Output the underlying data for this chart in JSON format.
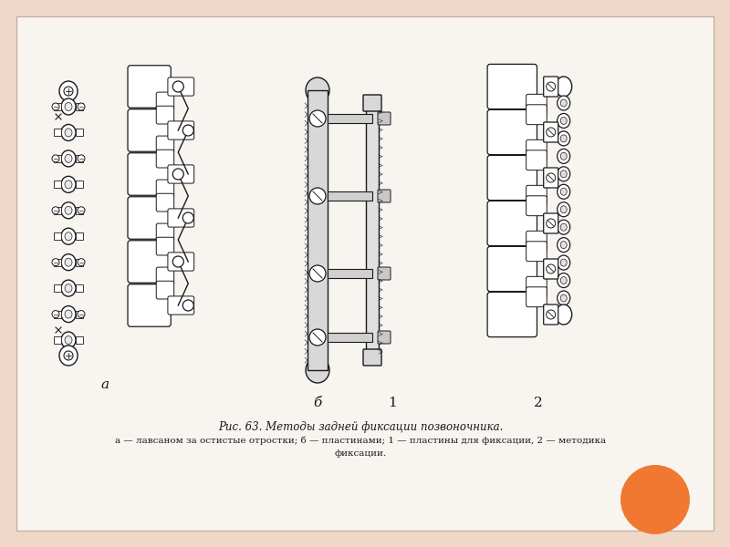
{
  "title_line1": "Рис. 63. Методы задней фиксации позвоночника.",
  "title_line2": "а — лавсаном за остистые отростки; б — пластинами; 1 — пластины для фиксации, 2 — методика",
  "title_line3": "фиксации.",
  "label_a": "а",
  "label_b": "б",
  "label_1": "1",
  "label_2": "2",
  "bg_color": "#f0d8c8",
  "paper_color": "#f8f4f0",
  "draw_color": "#1a1a1a",
  "orange_circle_color": "#f07830",
  "fig_width": 8.0,
  "fig_height": 6.0,
  "dpi": 100
}
